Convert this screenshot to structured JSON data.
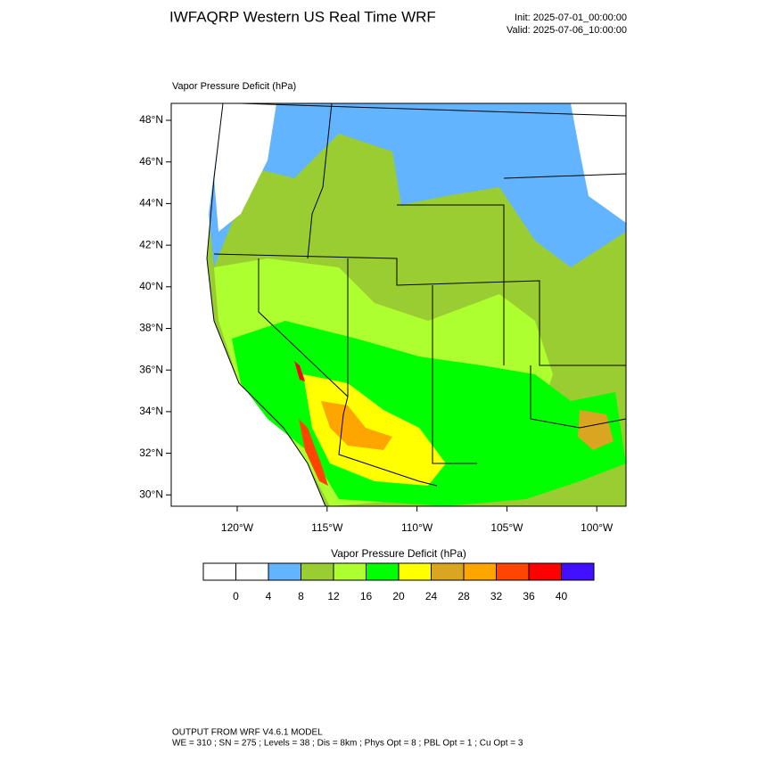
{
  "header": {
    "title": "IWFAQRP Western US Real Time WRF",
    "init": "Init: 2025-07-01_00:00:00",
    "valid": "Valid: 2025-07-06_10:00:00"
  },
  "map": {
    "label": "Vapor Pressure Deficit   (hPa)",
    "lat_labels": [
      "48°N",
      "46°N",
      "44°N",
      "42°N",
      "40°N",
      "38°N",
      "36°N",
      "34°N",
      "32°N",
      "30°N"
    ],
    "lon_labels": [
      "120°W",
      "115°W",
      "110°W",
      "105°W",
      "100°W"
    ]
  },
  "colorbar": {
    "title": "Vapor Pressure Deficit  (hPa)",
    "colors": [
      "#ffffff",
      "#ffffff",
      "#63b4ff",
      "#9acd32",
      "#adff2f",
      "#00ff00",
      "#ffff00",
      "#daa520",
      "#ffa500",
      "#ff4500",
      "#ff0000",
      "#4010ff"
    ],
    "labels": [
      0,
      4,
      8,
      12,
      16,
      20,
      24,
      28,
      32,
      36,
      40
    ]
  },
  "footer": {
    "line1": "OUTPUT FROM WRF V4.6.1 MODEL",
    "line2": "WE = 310 ; SN = 275 ; Levels = 38 ; Dis = 8km ; Phys Opt = 8 ; PBL Opt = 1 ; Cu Opt = 3"
  }
}
